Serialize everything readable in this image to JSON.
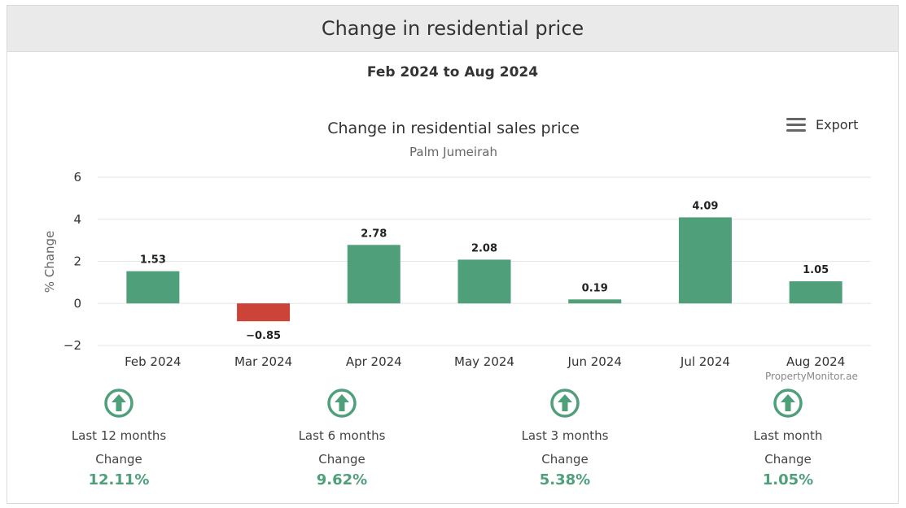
{
  "header": {
    "title": "Change in residential price"
  },
  "period": {
    "label": "Feb 2024 to Aug 2024"
  },
  "chart_data": {
    "type": "bar",
    "title": "Change in residential sales price",
    "subtitle": "Palm Jumeirah",
    "xlabel": "",
    "ylabel": "% Change",
    "categories": [
      "Feb 2024",
      "Mar 2024",
      "Apr 2024",
      "May 2024",
      "Jun 2024",
      "Jul 2024",
      "Aug 2024"
    ],
    "values": [
      1.53,
      -0.85,
      2.78,
      2.08,
      0.19,
      4.09,
      1.05
    ],
    "data_labels": [
      "1.53",
      "−0.85",
      "2.78",
      "2.08",
      "0.19",
      "4.09",
      "1.05"
    ],
    "ylim": [
      -2,
      6
    ],
    "yticks": [
      6,
      4,
      2,
      0,
      -2
    ],
    "ytick_labels": [
      "6",
      "4",
      "2",
      "0",
      "−2"
    ],
    "grid": true,
    "legend": "none",
    "colors": {
      "positive": "#4fa07a",
      "negative": "#cc4438"
    }
  },
  "export": {
    "label": "Export",
    "icon": "hamburger-menu-icon"
  },
  "credit": {
    "text": "PropertyMonitor.ae"
  },
  "summary": [
    {
      "label": "Last 12 months",
      "sub": "Change",
      "value": "12.11%",
      "icon": "arrow-up-circle-icon"
    },
    {
      "label": "Last 6 months",
      "sub": "Change",
      "value": "9.62%",
      "icon": "arrow-up-circle-icon"
    },
    {
      "label": "Last 3 months",
      "sub": "Change",
      "value": "5.38%",
      "icon": "arrow-up-circle-icon"
    },
    {
      "label": "Last month",
      "sub": "Change",
      "value": "1.05%",
      "icon": "arrow-up-circle-icon"
    }
  ],
  "colors": {
    "accent": "#4fa07a",
    "negative": "#cc4438",
    "header_bg": "#eaeaea"
  }
}
